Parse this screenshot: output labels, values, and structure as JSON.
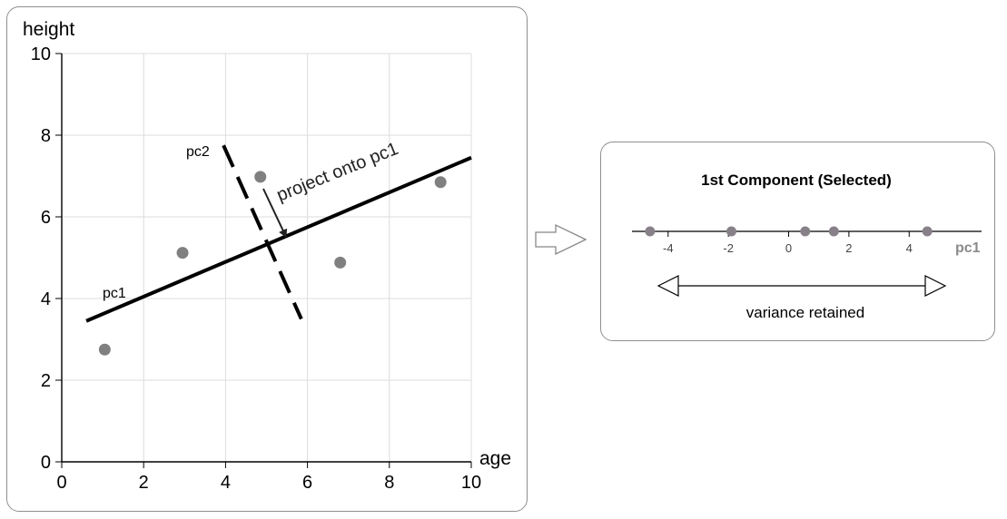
{
  "scatter_plot": {
    "type": "scatter",
    "xlabel": "age",
    "ylabel": "height",
    "xlim": [
      0,
      10
    ],
    "ylim": [
      0,
      10
    ],
    "xticks": [
      "0",
      "2",
      "4",
      "6",
      "8",
      "10"
    ],
    "yticks": [
      "0",
      "2",
      "4",
      "6",
      "8",
      "10"
    ],
    "grid": true,
    "points": [
      {
        "x": 1.05,
        "y": 2.75
      },
      {
        "x": 2.95,
        "y": 5.12
      },
      {
        "x": 4.85,
        "y": 6.98
      },
      {
        "x": 6.8,
        "y": 4.88
      },
      {
        "x": 9.25,
        "y": 6.85
      }
    ],
    "pc1_line": {
      "label": "pc1",
      "from": [
        0.6,
        3.45
      ],
      "to": [
        10.0,
        7.45
      ]
    },
    "pc2_line": {
      "label": "pc2",
      "from": [
        3.95,
        7.75
      ],
      "to": [
        5.85,
        3.5
      ]
    },
    "annotation": "project onto pc1",
    "point_color": "#808080"
  },
  "projection": {
    "title": "1st Component (Selected)",
    "axis_label": "pc1",
    "ticks": [
      "-4",
      "-2",
      "0",
      "2",
      "4"
    ],
    "points": [
      -4.6,
      -1.9,
      0.55,
      1.5,
      4.6
    ],
    "xlim": [
      -5.5,
      5.8
    ],
    "caption": "variance retained",
    "point_color": "#888088"
  }
}
